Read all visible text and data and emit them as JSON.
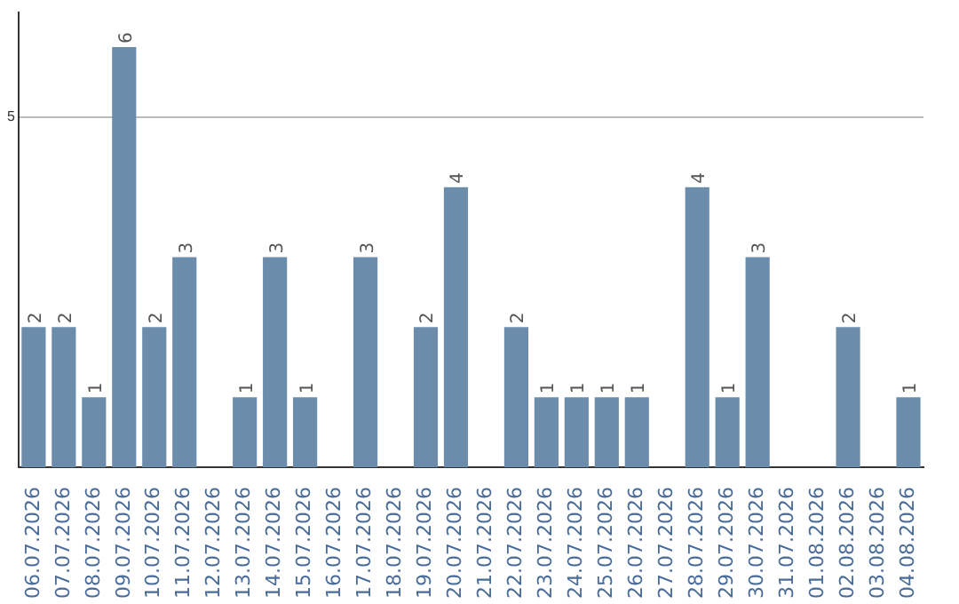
{
  "chart_data": {
    "type": "bar",
    "categories": [
      "06.07.2026",
      "07.07.2026",
      "08.07.2026",
      "09.07.2026",
      "10.07.2026",
      "11.07.2026",
      "12.07.2026",
      "13.07.2026",
      "14.07.2026",
      "15.07.2026",
      "16.07.2026",
      "17.07.2026",
      "18.07.2026",
      "19.07.2026",
      "20.07.2026",
      "21.07.2026",
      "22.07.2026",
      "23.07.2026",
      "24.07.2026",
      "25.07.2026",
      "26.07.2026",
      "27.07.2026",
      "28.07.2026",
      "29.07.2026",
      "30.07.2026",
      "31.07.2026",
      "01.08.2026",
      "02.08.2026",
      "03.08.2026",
      "04.08.2026"
    ],
    "values": [
      2,
      2,
      1,
      6,
      2,
      3,
      0,
      1,
      3,
      1,
      0,
      3,
      0,
      2,
      4,
      0,
      2,
      1,
      1,
      1,
      1,
      0,
      4,
      1,
      3,
      0,
      0,
      2,
      0,
      1
    ],
    "value_labels": [
      "2",
      "2",
      "1",
      "6",
      "2",
      "3",
      null,
      "1",
      "3",
      "1",
      null,
      "3",
      null,
      "2",
      "4",
      null,
      "2",
      "1",
      "1",
      "1",
      "1",
      null,
      "4",
      "1",
      "3",
      null,
      null,
      "2",
      null,
      "1"
    ],
    "color": "#6b8cab",
    "ylim": [
      0,
      6.5
    ],
    "yticks": [
      5
    ],
    "grid": "y",
    "legend": false
  }
}
